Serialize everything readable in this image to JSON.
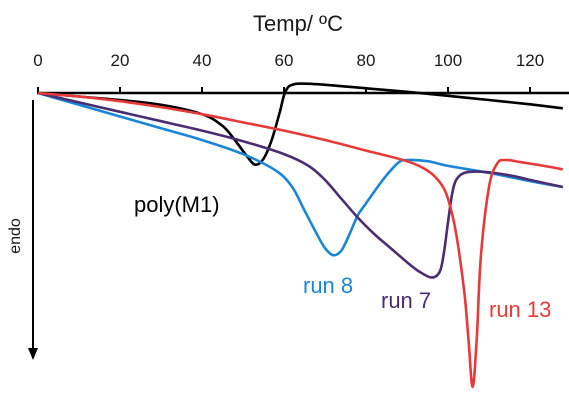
{
  "chart_data": {
    "type": "line",
    "xlabel": "Temp/ ºC",
    "ylabel": "endo",
    "xlim": [
      0,
      128
    ],
    "x_ticks": [
      0,
      20,
      40,
      60,
      80,
      100,
      120
    ],
    "x_axis_position": "top",
    "y_axis_ticks": "none",
    "grid": false,
    "legend": "none (series labels placed next to curves)",
    "series": [
      {
        "name": "poly(M1)",
        "color": "#000000",
        "x": [
          0,
          10,
          20,
          30,
          40,
          45,
          48,
          51,
          53,
          55,
          57,
          59,
          60,
          61,
          62,
          64,
          70,
          80,
          90,
          100,
          110,
          120,
          128
        ],
        "y": [
          0,
          1.5,
          3,
          5,
          9,
          14,
          20,
          27,
          30.5,
          28,
          20,
          8,
          1,
          -2.5,
          -3.5,
          -4,
          -3.5,
          -2,
          -0.5,
          1.2,
          3,
          4.8,
          6.5
        ]
      },
      {
        "name": "run 8",
        "color": "#1a86d6",
        "x": [
          0,
          10,
          20,
          30,
          40,
          50,
          58,
          62,
          65,
          68,
          70,
          72,
          74,
          76,
          78,
          80,
          82,
          85,
          88,
          90,
          95,
          100,
          110,
          120,
          128
        ],
        "y": [
          0,
          5,
          10,
          15,
          20,
          26,
          33,
          40,
          50,
          60,
          66,
          69,
          67,
          60,
          52,
          47,
          42,
          35,
          29.5,
          28.5,
          29,
          31,
          34,
          37.5,
          40
        ]
      },
      {
        "name": "run 7",
        "color": "#4a2e72",
        "x": [
          0,
          10,
          20,
          30,
          40,
          50,
          60,
          66,
          70,
          74,
          78,
          82,
          86,
          90,
          93,
          96,
          98,
          99,
          100,
          101,
          102,
          104,
          108,
          115,
          120,
          128
        ],
        "y": [
          0,
          4,
          8,
          12,
          16,
          20.5,
          26,
          31,
          37,
          45,
          53,
          60,
          66,
          72,
          76,
          78.5,
          76,
          68,
          55,
          43,
          37,
          34,
          33.5,
          35,
          37,
          40
        ]
      },
      {
        "name": "run 13",
        "color": "#e83a3a",
        "x": [
          0,
          10,
          20,
          30,
          40,
          50,
          60,
          70,
          80,
          90,
          95,
          98,
          100,
          102,
          104,
          105,
          106,
          107,
          108,
          110,
          112,
          114,
          118,
          125,
          128
        ],
        "y": [
          0,
          1.5,
          3.5,
          6,
          9,
          12.5,
          16,
          20,
          24.5,
          29,
          33,
          38,
          45,
          60,
          85,
          105,
          125,
          105,
          70,
          40,
          30,
          28.5,
          29.5,
          31.5,
          32.5
        ]
      }
    ]
  }
}
